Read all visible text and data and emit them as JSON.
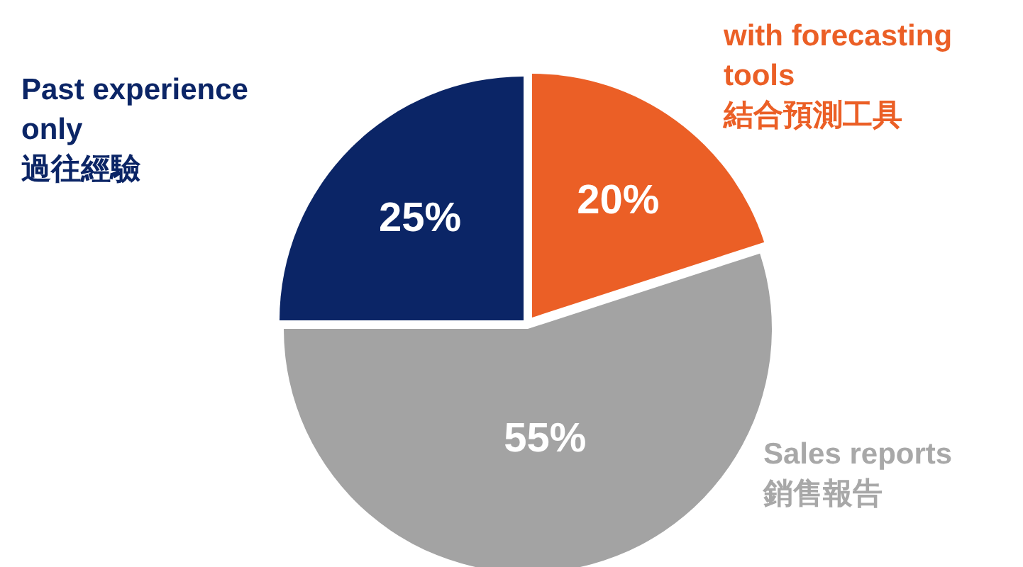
{
  "chart_data": {
    "type": "pie",
    "categories": [
      "with forecasting tools\n結合預測工具",
      "Sales reports\n銷售報告",
      "Past experience only\n過往經驗"
    ],
    "values": [
      20,
      55,
      25
    ],
    "colors": [
      "#eb5f26",
      "#a3a3a3",
      "#0b2566"
    ],
    "value_labels": [
      "20%",
      "55%",
      "25%"
    ]
  }
}
